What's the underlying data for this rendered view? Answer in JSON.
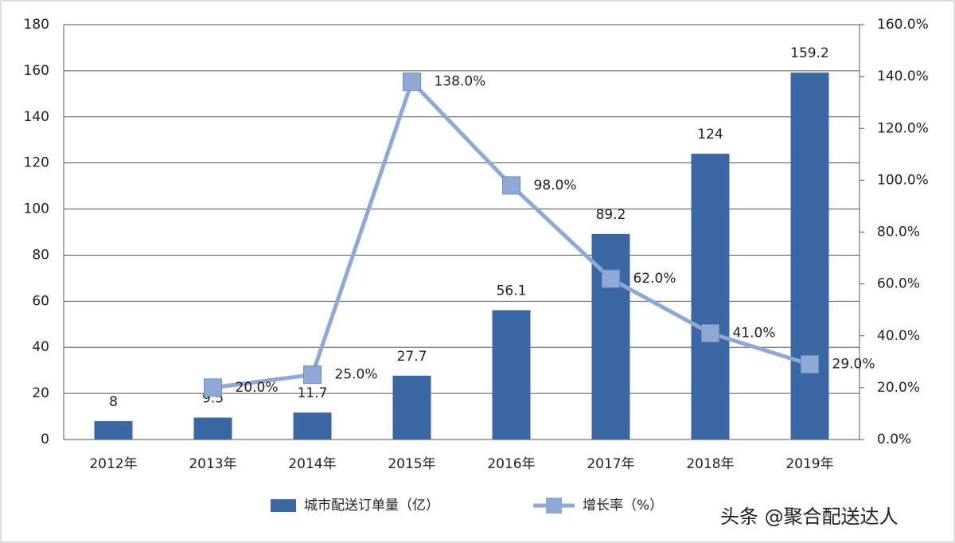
{
  "chart_data": {
    "type": "bar-line",
    "categories": [
      "2012年",
      "2013年",
      "2014年",
      "2015年",
      "2016年",
      "2017年",
      "2018年",
      "2019年"
    ],
    "series": [
      {
        "name": "城市配送订单量（亿）",
        "type": "bar",
        "color": "#3b67a3",
        "values": [
          8,
          9.5,
          11.7,
          27.7,
          56.1,
          89.2,
          124,
          159.2
        ]
      },
      {
        "name": "增长率（%）",
        "type": "line",
        "axis": "y2",
        "color": "#8ea9d6",
        "values": [
          null,
          20,
          25,
          138,
          98,
          62,
          41,
          29
        ],
        "value_labels": [
          null,
          "20.0%",
          "25.0%",
          "138.0%",
          "98.0%",
          "62.0%",
          "41.0%",
          "29.0%"
        ]
      }
    ],
    "ylim": [
      0,
      180
    ],
    "yticks": [
      0,
      20,
      40,
      60,
      80,
      100,
      120,
      140,
      160,
      180
    ],
    "y2lim": [
      0,
      160
    ],
    "y2ticks": [
      {
        "value": 0,
        "label": "0.0%"
      },
      {
        "value": 20,
        "label": "20.0%"
      },
      {
        "value": 40,
        "label": "40.0%"
      },
      {
        "value": 60,
        "label": "60.0%"
      },
      {
        "value": 80,
        "label": "80.0%"
      },
      {
        "value": 100,
        "label": "100.0%"
      },
      {
        "value": 120,
        "label": "120.0%"
      },
      {
        "value": 140,
        "label": "140.0%"
      },
      {
        "value": 160,
        "label": "160.0%"
      }
    ],
    "grid": true,
    "legend": "bottom"
  },
  "watermark": "头条 @聚合配送达人"
}
